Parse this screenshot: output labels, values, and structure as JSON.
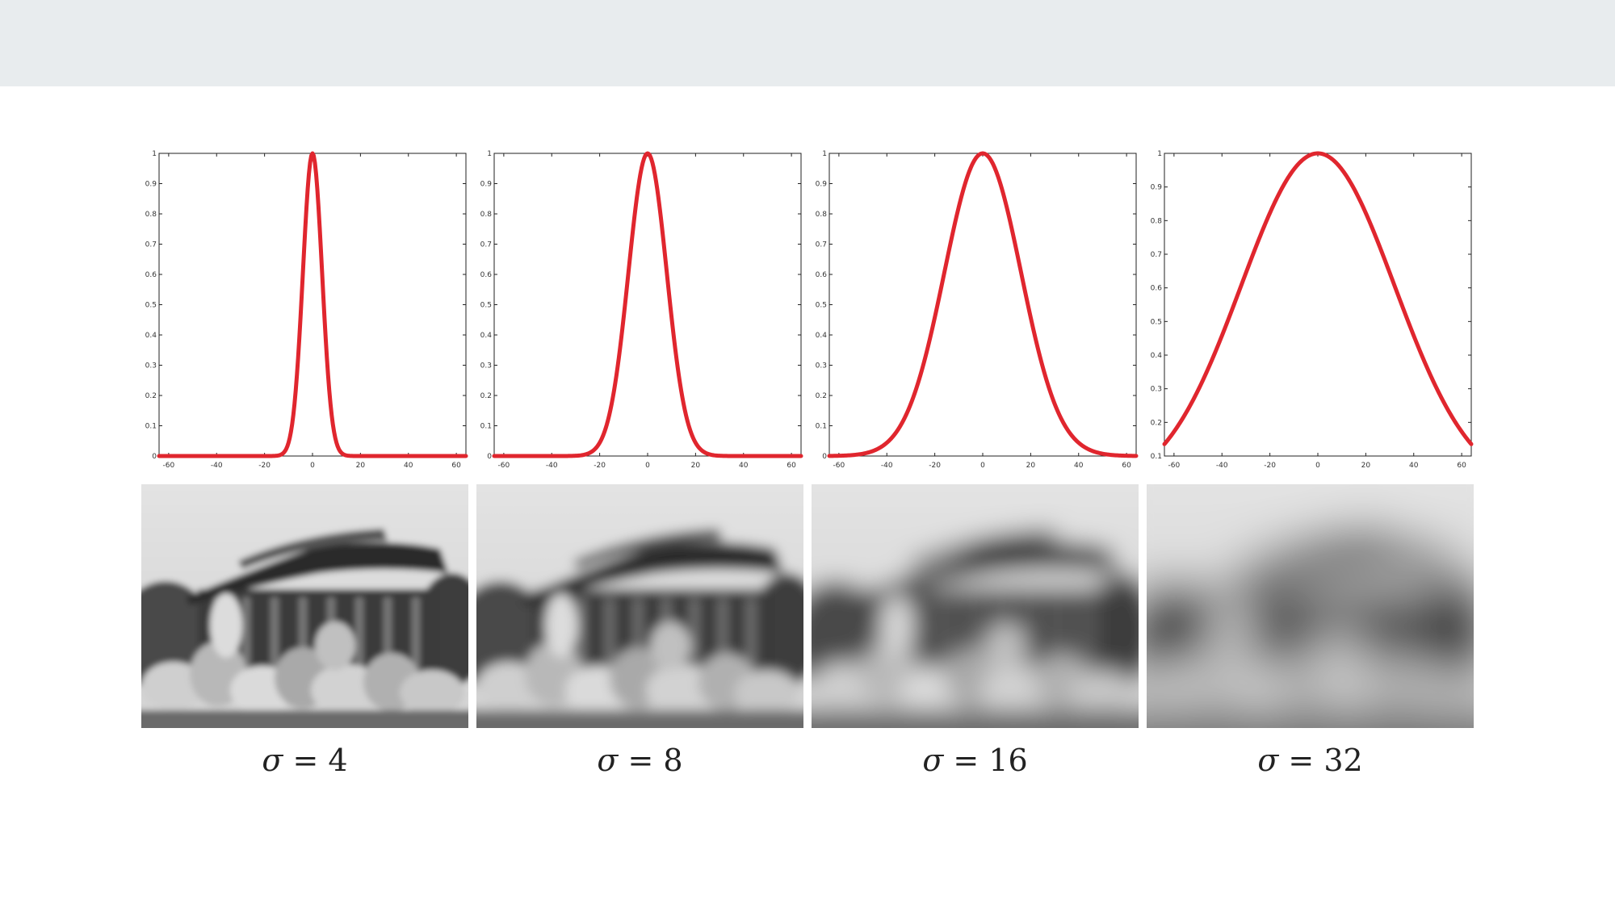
{
  "chart_data": [
    {
      "type": "line",
      "sigma": 4,
      "caption": {
        "symbol": "σ",
        "op": "=",
        "value": "4"
      },
      "curve": "exp(-x^2 / (2*sigma^2))",
      "series": [
        {
          "color": "#e0262e",
          "x": [
            -64,
            -20,
            -10,
            -6,
            -4,
            -2,
            0,
            2,
            4,
            6,
            10,
            20,
            64
          ],
          "values": [
            0,
            0,
            0.04,
            0.32,
            0.61,
            0.88,
            1,
            0.88,
            0.61,
            0.32,
            0.04,
            0,
            0
          ]
        }
      ],
      "xlim": [
        -64,
        64
      ],
      "ylim": [
        0,
        1
      ],
      "xticks": [
        "-60",
        "-40",
        "-20",
        "0",
        "20",
        "40",
        "60"
      ],
      "yticks": [
        "0",
        "0.1",
        "0.2",
        "0.3",
        "0.4",
        "0.5",
        "0.6",
        "0.7",
        "0.8",
        "0.9",
        "1"
      ],
      "grid": false
    },
    {
      "type": "line",
      "sigma": 8,
      "caption": {
        "symbol": "σ",
        "op": "=",
        "value": "8"
      },
      "curve": "exp(-x^2 / (2*sigma^2))",
      "series": [
        {
          "color": "#e0262e",
          "x": [
            -64,
            -24,
            -16,
            -8,
            0,
            8,
            16,
            24,
            64
          ],
          "values": [
            0,
            0.01,
            0.14,
            0.61,
            1,
            0.61,
            0.14,
            0.01,
            0
          ]
        }
      ],
      "xlim": [
        -64,
        64
      ],
      "ylim": [
        0,
        1
      ],
      "xticks": [
        "-60",
        "-40",
        "-20",
        "0",
        "20",
        "40",
        "60"
      ],
      "yticks": [
        "0",
        "0.1",
        "0.2",
        "0.3",
        "0.4",
        "0.5",
        "0.6",
        "0.7",
        "0.8",
        "0.9",
        "1"
      ],
      "grid": false
    },
    {
      "type": "line",
      "sigma": 16,
      "caption": {
        "symbol": "σ",
        "op": "=",
        "value": "16"
      },
      "curve": "exp(-x^2 / (2*sigma^2))",
      "series": [
        {
          "color": "#e0262e",
          "x": [
            -64,
            -48,
            -32,
            -16,
            0,
            16,
            32,
            48,
            64
          ],
          "values": [
            0,
            0.01,
            0.14,
            0.61,
            1,
            0.61,
            0.14,
            0.01,
            0
          ]
        }
      ],
      "xlim": [
        -64,
        64
      ],
      "ylim": [
        0,
        1
      ],
      "xticks": [
        "-60",
        "-40",
        "-20",
        "0",
        "20",
        "40",
        "60"
      ],
      "yticks": [
        "0",
        "0.1",
        "0.2",
        "0.3",
        "0.4",
        "0.5",
        "0.6",
        "0.7",
        "0.8",
        "0.9",
        "1"
      ],
      "grid": false
    },
    {
      "type": "line",
      "sigma": 32,
      "caption": {
        "symbol": "σ",
        "op": "=",
        "value": "32"
      },
      "curve": "exp(-x^2 / (2*sigma^2))",
      "series": [
        {
          "color": "#e0262e",
          "x": [
            -64,
            -32,
            0,
            32,
            64
          ],
          "values": [
            0.14,
            0.61,
            1,
            0.61,
            0.14
          ]
        }
      ],
      "xlim": [
        -64,
        64
      ],
      "ylim": [
        0.1,
        1
      ],
      "xticks": [
        "-60",
        "-40",
        "-20",
        "0",
        "20",
        "40",
        "60"
      ],
      "yticks": [
        "0.1",
        "0.2",
        "0.3",
        "0.4",
        "0.5",
        "0.6",
        "0.7",
        "0.8",
        "0.9",
        "1"
      ],
      "grid": false
    }
  ],
  "images": [
    {
      "name": "blurred-photo",
      "blur_sigma": 4
    },
    {
      "name": "blurred-photo",
      "blur_sigma": 8
    },
    {
      "name": "blurred-photo",
      "blur_sigma": 16
    },
    {
      "name": "blurred-photo",
      "blur_sigma": 32
    }
  ]
}
